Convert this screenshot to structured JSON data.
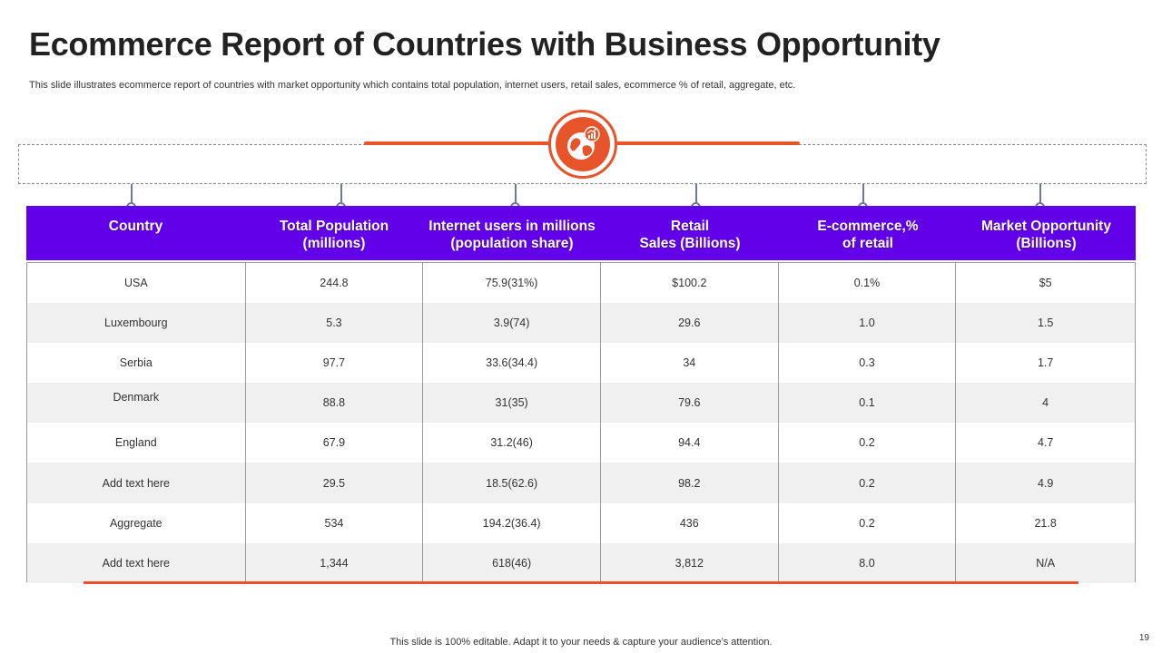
{
  "slide": {
    "title": "Ecommerce Report of Countries with Business Opportunity",
    "subtitle": "This slide illustrates ecommerce report of countries with market opportunity which contains total population, internet users, retail sales, ecommerce % of retail, aggregate, etc.",
    "footer": "This slide is 100% editable. Adapt it to your needs & capture your audience’s attention.",
    "page_number": "19",
    "emblem_icon": "globe-growth-chart-icon"
  },
  "colors": {
    "accent": "#e8542a",
    "header_bg": "#6200ea",
    "row_alt": "#f0f0f0"
  },
  "table": {
    "headers": [
      "Country",
      "Total Population\n(millions)",
      "Internet users in millions\n(population share)",
      "Retail\nSales (Billions)",
      "E-commerce,%\nof retail",
      "Market Opportunity\n(Billions)"
    ],
    "rows": [
      [
        "USA",
        "244.8",
        "75.9(31%)",
        "$100.2",
        "0.1%",
        "$5"
      ],
      [
        "Luxembourg",
        "5.3",
        "3.9(74)",
        "29.6",
        "1.0",
        "1.5"
      ],
      [
        "Serbia",
        "97.7",
        "33.6(34.4)",
        "34",
        "0.3",
        "1.7"
      ],
      [
        "Denmark",
        "88.8",
        "31(35)",
        "79.6",
        "0.1",
        "4"
      ],
      [
        "England",
        "67.9",
        "31.2(46)",
        "94.4",
        "0.2",
        "4.7"
      ],
      [
        "Add text here",
        "29.5",
        "18.5(62.6)",
        "98.2",
        "0.2",
        "4.9"
      ],
      [
        "Aggregate",
        "534",
        "194.2(36.4)",
        "436",
        "0.2",
        "21.8"
      ],
      [
        "Add text here",
        "1,344",
        "618(46)",
        "3,812",
        "8.0",
        "N/A"
      ]
    ]
  }
}
